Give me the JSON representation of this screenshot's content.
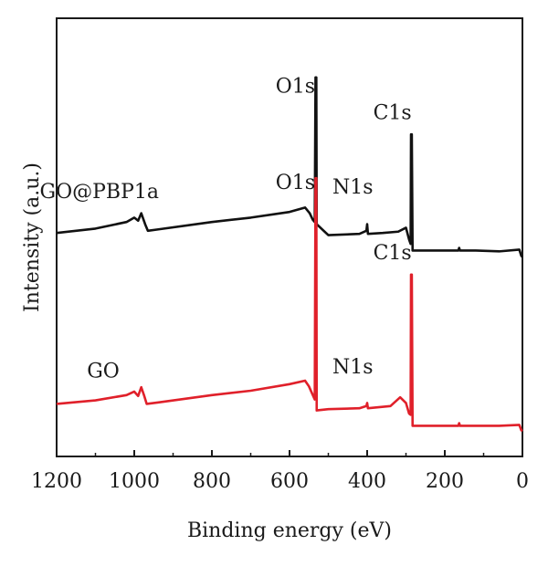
{
  "chart_data": {
    "type": "line",
    "title": "",
    "xlabel": "Binding energy (eV)",
    "ylabel": "Intensity (a.u.)",
    "xlim": [
      1200,
      0
    ],
    "ylim": [
      0,
      100
    ],
    "x_reversed": true,
    "x_ticks": [
      1200,
      1000,
      800,
      600,
      400,
      200,
      0
    ],
    "y_ticks_shown": false,
    "grid": false,
    "legend": "none (series labeled directly on plot)",
    "series": [
      {
        "name": "GO@PBP1a",
        "color": "#111111",
        "label_at": [
          1090,
          59
        ],
        "points": [
          [
            1200,
            51.0
          ],
          [
            1100,
            52.0
          ],
          [
            1020,
            53.5
          ],
          [
            1000,
            54.5
          ],
          [
            990,
            53.8
          ],
          [
            982,
            55.5
          ],
          [
            972,
            53.0
          ],
          [
            965,
            51.5
          ],
          [
            940,
            51.8
          ],
          [
            800,
            53.5
          ],
          [
            700,
            54.5
          ],
          [
            600,
            55.8
          ],
          [
            560,
            56.8
          ],
          [
            548,
            55.5
          ],
          [
            540,
            54.0
          ],
          [
            535,
            53.5
          ],
          [
            533,
            86.5
          ],
          [
            531,
            86.5
          ],
          [
            530,
            53.0
          ],
          [
            500,
            50.5
          ],
          [
            420,
            50.8
          ],
          [
            402,
            51.5
          ],
          [
            400,
            53.0
          ],
          [
            398,
            50.8
          ],
          [
            360,
            51.0
          ],
          [
            320,
            51.3
          ],
          [
            300,
            52.2
          ],
          [
            292,
            49.5
          ],
          [
            288,
            48.5
          ],
          [
            287,
            73.5
          ],
          [
            285,
            73.5
          ],
          [
            283,
            47.0
          ],
          [
            250,
            47.0
          ],
          [
            200,
            47.0
          ],
          [
            165,
            47.0
          ],
          [
            163,
            47.6
          ],
          [
            161,
            47.0
          ],
          [
            120,
            47.0
          ],
          [
            60,
            46.8
          ],
          [
            8,
            47.2
          ],
          [
            3,
            45.8
          ],
          [
            0,
            45.5
          ]
        ]
      },
      {
        "name": "GO",
        "color": "#e0202a",
        "label_at": [
          1080,
          18
        ],
        "points": [
          [
            1200,
            12.0
          ],
          [
            1100,
            12.8
          ],
          [
            1020,
            14.0
          ],
          [
            1000,
            14.8
          ],
          [
            990,
            13.8
          ],
          [
            982,
            15.8
          ],
          [
            975,
            14.0
          ],
          [
            968,
            12.0
          ],
          [
            940,
            12.3
          ],
          [
            800,
            14.0
          ],
          [
            700,
            15.0
          ],
          [
            600,
            16.5
          ],
          [
            560,
            17.3
          ],
          [
            550,
            16.0
          ],
          [
            540,
            14.0
          ],
          [
            535,
            13.0
          ],
          [
            533,
            63.5
          ],
          [
            531,
            63.5
          ],
          [
            530,
            10.5
          ],
          [
            500,
            10.8
          ],
          [
            420,
            11.0
          ],
          [
            402,
            11.5
          ],
          [
            400,
            12.2
          ],
          [
            398,
            11.0
          ],
          [
            340,
            11.5
          ],
          [
            315,
            13.5
          ],
          [
            300,
            12.2
          ],
          [
            292,
            9.8
          ],
          [
            288,
            9.5
          ],
          [
            287,
            41.5
          ],
          [
            285,
            41.5
          ],
          [
            283,
            7.0
          ],
          [
            250,
            7.0
          ],
          [
            200,
            7.0
          ],
          [
            165,
            7.0
          ],
          [
            163,
            7.6
          ],
          [
            161,
            7.0
          ],
          [
            120,
            7.0
          ],
          [
            60,
            7.0
          ],
          [
            8,
            7.2
          ],
          [
            3,
            6.0
          ],
          [
            0,
            5.8
          ]
        ]
      }
    ],
    "annotations": [
      {
        "text": "O1s",
        "x": 585,
        "y": 83
      },
      {
        "text": "C1s",
        "x": 335,
        "y": 77
      },
      {
        "text": "N1s",
        "x": 437,
        "y": 60
      },
      {
        "text": "O1s",
        "x": 585,
        "y": 61
      },
      {
        "text": "C1s",
        "x": 335,
        "y": 45
      },
      {
        "text": "N1s",
        "x": 437,
        "y": 19
      }
    ]
  }
}
